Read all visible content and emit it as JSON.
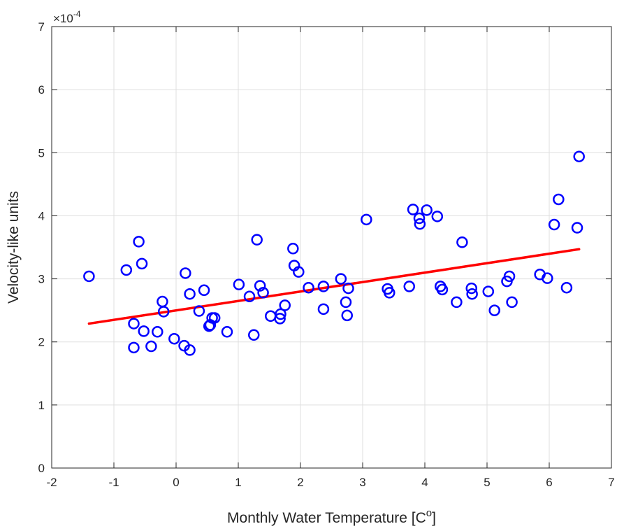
{
  "chart_data": {
    "type": "scatter",
    "title": "",
    "xlabel": "Monthly Water Temperature [C",
    "xlabel_sup": "o",
    "xlabel_close": "]",
    "ylabel": "Velocity-like units",
    "exponent_label": "×10",
    "exponent_power": "-4",
    "xlim": [
      -2,
      7
    ],
    "ylim": [
      0,
      7
    ],
    "x_ticks": [
      -2,
      -1,
      0,
      1,
      2,
      3,
      4,
      5,
      6,
      7
    ],
    "y_ticks": [
      0,
      1,
      2,
      3,
      4,
      5,
      6,
      7
    ],
    "grid": true,
    "series": [
      {
        "marker": "circle",
        "color": "#0000ff",
        "points": [
          [
            -1.4,
            3.04
          ],
          [
            -0.8,
            3.14
          ],
          [
            -0.6,
            3.59
          ],
          [
            -0.55,
            3.24
          ],
          [
            -0.68,
            2.29
          ],
          [
            -0.68,
            1.91
          ],
          [
            -0.52,
            2.17
          ],
          [
            -0.4,
            1.93
          ],
          [
            -0.3,
            2.16
          ],
          [
            -0.22,
            2.64
          ],
          [
            -0.2,
            2.48
          ],
          [
            -0.03,
            2.05
          ],
          [
            0.13,
            1.94
          ],
          [
            0.22,
            1.87
          ],
          [
            0.15,
            3.09
          ],
          [
            0.22,
            2.76
          ],
          [
            0.37,
            2.49
          ],
          [
            0.45,
            2.82
          ],
          [
            0.53,
            2.25
          ],
          [
            0.55,
            2.27
          ],
          [
            0.58,
            2.38
          ],
          [
            0.62,
            2.38
          ],
          [
            0.82,
            2.16
          ],
          [
            1.01,
            2.91
          ],
          [
            1.18,
            2.72
          ],
          [
            1.25,
            2.11
          ],
          [
            1.3,
            3.62
          ],
          [
            1.35,
            2.89
          ],
          [
            1.4,
            2.78
          ],
          [
            1.52,
            2.41
          ],
          [
            1.67,
            2.37
          ],
          [
            1.68,
            2.44
          ],
          [
            1.75,
            2.58
          ],
          [
            1.88,
            3.48
          ],
          [
            1.9,
            3.21
          ],
          [
            1.97,
            3.11
          ],
          [
            2.13,
            2.86
          ],
          [
            2.37,
            2.88
          ],
          [
            2.37,
            2.52
          ],
          [
            2.65,
            3.0
          ],
          [
            2.73,
            2.63
          ],
          [
            2.75,
            2.42
          ],
          [
            2.77,
            2.85
          ],
          [
            3.06,
            3.94
          ],
          [
            3.4,
            2.84
          ],
          [
            3.43,
            2.78
          ],
          [
            3.75,
            2.88
          ],
          [
            3.81,
            4.1
          ],
          [
            3.91,
            3.96
          ],
          [
            3.92,
            3.87
          ],
          [
            4.03,
            4.09
          ],
          [
            4.2,
            3.99
          ],
          [
            4.25,
            2.88
          ],
          [
            4.28,
            2.83
          ],
          [
            4.51,
            2.63
          ],
          [
            4.6,
            3.58
          ],
          [
            4.75,
            2.85
          ],
          [
            4.76,
            2.76
          ],
          [
            5.02,
            2.8
          ],
          [
            5.12,
            2.5
          ],
          [
            5.32,
            2.96
          ],
          [
            5.36,
            3.04
          ],
          [
            5.4,
            2.63
          ],
          [
            5.85,
            3.07
          ],
          [
            5.97,
            3.01
          ],
          [
            6.08,
            3.86
          ],
          [
            6.15,
            4.26
          ],
          [
            6.28,
            2.86
          ],
          [
            6.45,
            3.81
          ],
          [
            6.48,
            4.94
          ]
        ]
      }
    ],
    "fit_line": {
      "color": "#ff0000",
      "x": [
        -1.4,
        6.48
      ],
      "y": [
        2.29,
        3.47
      ]
    }
  }
}
